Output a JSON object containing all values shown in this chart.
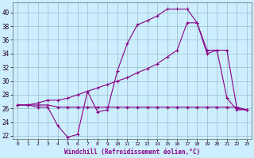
{
  "xlabel": "Windchill (Refroidissement éolien,°C)",
  "bg_color": "#cceeff",
  "line_color": "#880088",
  "grid_color": "#99bbcc",
  "xlim": [
    -0.5,
    23.5
  ],
  "ylim": [
    21.5,
    41.5
  ],
  "xticks": [
    0,
    1,
    2,
    3,
    4,
    5,
    6,
    7,
    8,
    9,
    10,
    11,
    12,
    13,
    14,
    15,
    16,
    17,
    18,
    19,
    20,
    21,
    22,
    23
  ],
  "yticks": [
    22,
    24,
    26,
    28,
    30,
    32,
    34,
    36,
    38,
    40
  ],
  "line1_x": [
    0,
    1,
    2,
    3,
    4,
    5,
    6,
    7,
    8,
    9,
    10,
    11,
    12,
    13,
    14,
    15,
    16,
    17,
    18,
    19,
    20,
    21,
    22,
    23
  ],
  "line1_y": [
    26.5,
    26.5,
    26.5,
    26.5,
    26.2,
    26.2,
    26.2,
    26.2,
    26.2,
    26.2,
    26.2,
    26.2,
    26.2,
    26.2,
    26.2,
    26.2,
    26.2,
    26.2,
    26.2,
    26.2,
    26.2,
    26.2,
    26.2,
    25.8
  ],
  "line2_x": [
    0,
    1,
    2,
    3,
    4,
    5,
    6,
    7,
    8,
    9,
    10,
    11,
    12,
    13,
    14,
    15,
    16,
    17,
    18,
    19,
    20,
    21,
    22,
    23
  ],
  "line2_y": [
    26.5,
    26.5,
    26.2,
    26.2,
    23.5,
    21.8,
    22.2,
    28.5,
    25.5,
    25.8,
    31.5,
    35.5,
    38.2,
    38.8,
    39.5,
    40.5,
    40.5,
    40.5,
    38.5,
    34.0,
    34.5,
    27.5,
    25.8,
    25.8
  ],
  "line3_x": [
    0,
    1,
    2,
    3,
    4,
    5,
    6,
    7,
    8,
    9,
    10,
    11,
    12,
    13,
    14,
    15,
    16,
    17,
    18,
    19,
    20,
    21,
    22,
    23
  ],
  "line3_y": [
    26.5,
    26.5,
    26.8,
    27.2,
    27.2,
    27.5,
    28.0,
    28.5,
    29.0,
    29.5,
    30.0,
    30.5,
    31.2,
    31.8,
    32.5,
    33.5,
    34.5,
    38.5,
    38.5,
    34.5,
    34.5,
    34.5,
    26.0,
    25.8
  ]
}
